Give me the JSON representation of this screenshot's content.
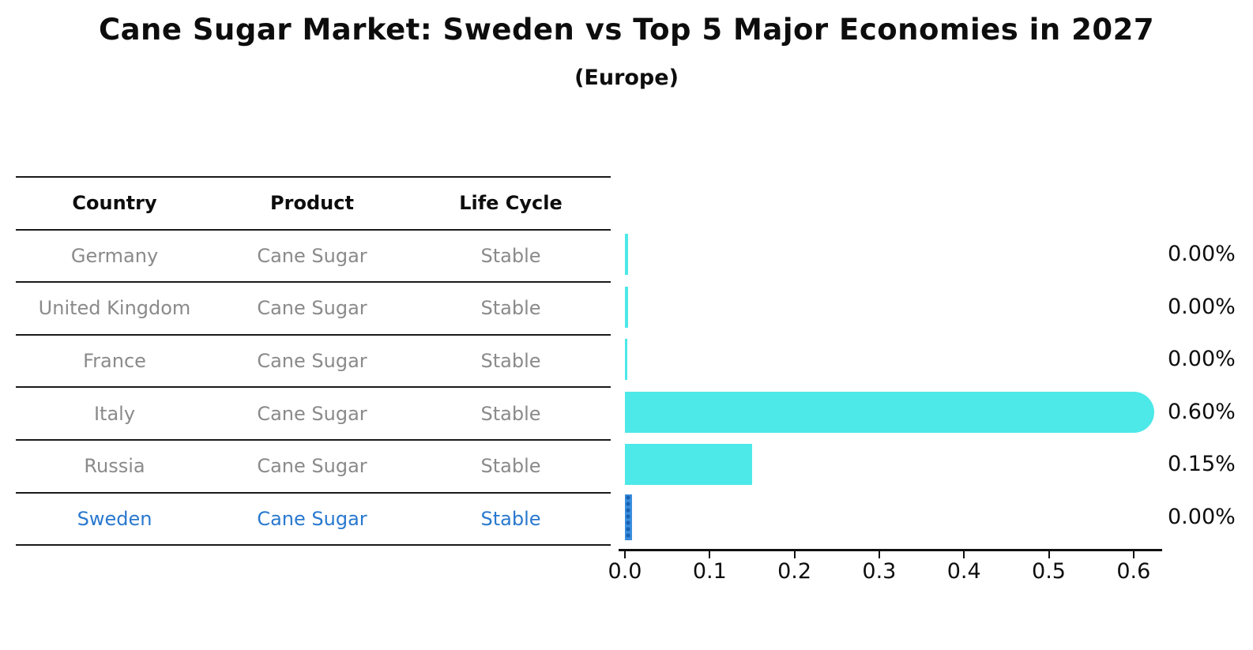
{
  "page": {
    "title": "Cane Sugar Market: Sweden vs Top 5 Major Economies in 2027",
    "subtitle": "(Europe)"
  },
  "table": {
    "headers": [
      "Country",
      "Product",
      "Life Cycle"
    ],
    "rows": [
      {
        "country": "Germany",
        "product": "Cane Sugar",
        "life_cycle": "Stable",
        "highlight": false
      },
      {
        "country": "United Kingdom",
        "product": "Cane Sugar",
        "life_cycle": "Stable",
        "highlight": false
      },
      {
        "country": "France",
        "product": "Cane Sugar",
        "life_cycle": "Stable",
        "highlight": false
      },
      {
        "country": "Italy",
        "product": "Cane Sugar",
        "life_cycle": "Stable",
        "highlight": false
      },
      {
        "country": "Russia",
        "product": "Cane Sugar",
        "life_cycle": "Stable",
        "highlight": false
      },
      {
        "country": "Sweden",
        "product": "Cane Sugar",
        "life_cycle": "Stable",
        "highlight": true
      }
    ]
  },
  "chart_data": {
    "type": "bar",
    "orientation": "horizontal",
    "title": "Cane Sugar Market: Sweden vs Top 5 Major Economies in 2027",
    "subtitle": "(Europe)",
    "categories": [
      "Germany",
      "United Kingdom",
      "France",
      "Italy",
      "Russia",
      "Sweden"
    ],
    "values": [
      0.0,
      0.0,
      0.0,
      0.6,
      0.15,
      0.0
    ],
    "value_labels": [
      "0.00%",
      "0.00%",
      "0.00%",
      "0.60%",
      "0.15%",
      "0.00%"
    ],
    "bar_styles": [
      "sliver",
      "sliver",
      "sliver",
      "round-cap",
      "flat",
      "hatched"
    ],
    "highlight_category": "Sweden",
    "xlabel": "",
    "ylabel": "",
    "xlim": [
      0.0,
      0.64
    ],
    "x_ticks": [
      "0.0",
      "0.1",
      "0.2",
      "0.3",
      "0.4",
      "0.5",
      "0.6"
    ],
    "grid": false,
    "legend": false,
    "colors": {
      "bar": "#4DE8E8",
      "highlight": "#2878CE",
      "muted_text": "#8a8a8a",
      "axis": "#111111"
    }
  }
}
